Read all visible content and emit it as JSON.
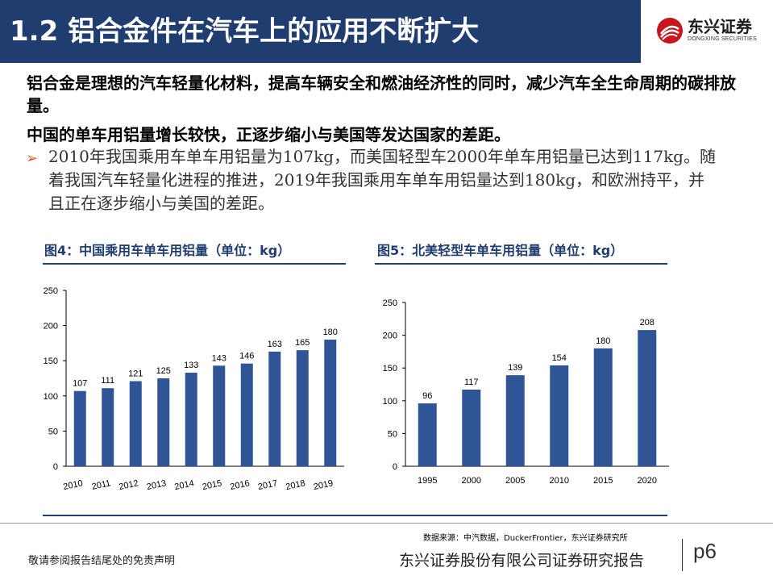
{
  "header": {
    "title": "1.2 铝合金件在汽车上的应用不断扩大",
    "logo_cn": "东兴证券",
    "logo_en": "DONGXING SECURITIES"
  },
  "body": {
    "lead1": "铝合金是理想的汽车轻量化材料，提高车辆安全和燃油经济性的同时，减少汽车全生命周期的碳排放量。",
    "lead2": "中国的单车用铝量增长较快，正逐步缩小与美国等发达国家的差距。",
    "bullet_symbol": "➢",
    "bullet": "2010年我国乘用车单车用铝量为107kg，而美国轻型车2000年单车用铝量已达到117kg。随着我国汽车轻量化进程的推进，2019年我国乘用车单车用铝量达到180kg，和欧洲持平，并且正在逐步缩小与美国的差距。"
  },
  "chart_data": [
    {
      "type": "bar",
      "title": "图4：中国乘用车单车用铝量（单位：kg）",
      "categories": [
        "2010",
        "2011",
        "2012",
        "2013",
        "2014",
        "2015",
        "2016",
        "2017",
        "2018",
        "2019"
      ],
      "values": [
        107,
        111,
        121,
        125,
        133,
        143,
        146,
        163,
        165,
        180
      ],
      "ylim": [
        0,
        250
      ],
      "yticks": [
        0,
        50,
        100,
        150,
        200,
        250
      ],
      "color": "#2f5597",
      "xlabel": "",
      "ylabel": ""
    },
    {
      "type": "bar",
      "title": "图5：北美轻型车单车用铝量（单位：kg）",
      "categories": [
        "1995",
        "2000",
        "2005",
        "2010",
        "2015",
        "2020"
      ],
      "values": [
        96,
        117,
        139,
        154,
        180,
        208
      ],
      "ylim": [
        0,
        250
      ],
      "yticks": [
        0,
        50,
        100,
        150,
        200,
        250
      ],
      "color": "#2f5597",
      "xlabel": "",
      "ylabel": ""
    }
  ],
  "footer": {
    "source": "数据来源：中汽数据，DuckerFrontier，东兴证券研究所",
    "disclaimer": "敬请参阅报告结尾处的免责声明",
    "company": "东兴证券股份有限公司证券研究报告",
    "page": "p6"
  },
  "colors": {
    "brand_navy": "#1f3d6e",
    "bar_blue": "#2f5597",
    "logo_red": "#c8161d",
    "bullet_orange": "#e0571f"
  }
}
